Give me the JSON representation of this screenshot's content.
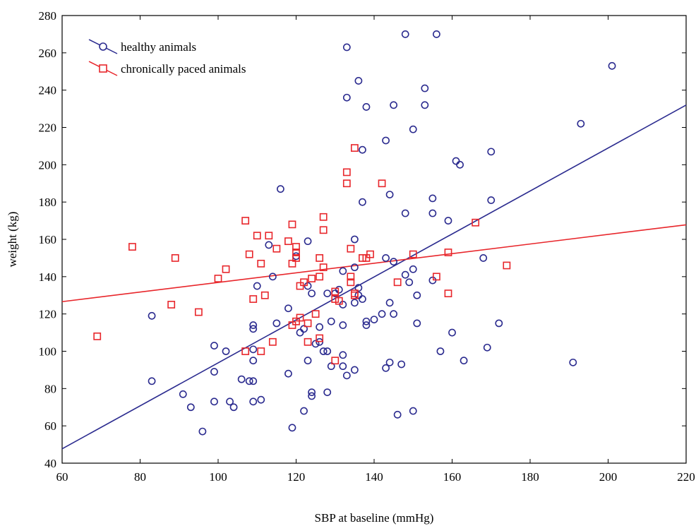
{
  "chart_data": {
    "type": "scatter",
    "title": "",
    "xlabel": "SBP at baseline (mmHg)",
    "ylabel": "weight (kg)",
    "xlim": [
      60,
      220
    ],
    "ylim": [
      40,
      280
    ],
    "xticks": [
      60,
      80,
      100,
      120,
      140,
      160,
      180,
      200,
      220
    ],
    "yticks": [
      40,
      60,
      80,
      100,
      120,
      140,
      160,
      180,
      200,
      220,
      240,
      260,
      280
    ],
    "grid": false,
    "legend_position": "top-left",
    "series": [
      {
        "name": "healthy animals",
        "marker": "circle",
        "color": "#2b2b8f",
        "points": [
          [
            83,
            119
          ],
          [
            83,
            84
          ],
          [
            91,
            77
          ],
          [
            93,
            70
          ],
          [
            96,
            57
          ],
          [
            99,
            103
          ],
          [
            99,
            89
          ],
          [
            99,
            73
          ],
          [
            102,
            100
          ],
          [
            103,
            73
          ],
          [
            104,
            70
          ],
          [
            106,
            85
          ],
          [
            108,
            84
          ],
          [
            109,
            84
          ],
          [
            109,
            114
          ],
          [
            109,
            112
          ],
          [
            109,
            101
          ],
          [
            109,
            95
          ],
          [
            109,
            73
          ],
          [
            110,
            135
          ],
          [
            111,
            74
          ],
          [
            113,
            157
          ],
          [
            114,
            140
          ],
          [
            115,
            115
          ],
          [
            116,
            187
          ],
          [
            118,
            123
          ],
          [
            118,
            88
          ],
          [
            119,
            59
          ],
          [
            120,
            151
          ],
          [
            121,
            110
          ],
          [
            122,
            112
          ],
          [
            122,
            68
          ],
          [
            123,
            159
          ],
          [
            123,
            135
          ],
          [
            123,
            95
          ],
          [
            124,
            131
          ],
          [
            124,
            78
          ],
          [
            124,
            76
          ],
          [
            125,
            104
          ],
          [
            126,
            113
          ],
          [
            126,
            105
          ],
          [
            127,
            100
          ],
          [
            128,
            131
          ],
          [
            128,
            100
          ],
          [
            128,
            78
          ],
          [
            129,
            116
          ],
          [
            129,
            92
          ],
          [
            131,
            133
          ],
          [
            132,
            143
          ],
          [
            132,
            125
          ],
          [
            132,
            114
          ],
          [
            132,
            98
          ],
          [
            132,
            92
          ],
          [
            133,
            263
          ],
          [
            133,
            236
          ],
          [
            133,
            87
          ],
          [
            135,
            160
          ],
          [
            135,
            145
          ],
          [
            135,
            126
          ],
          [
            135,
            90
          ],
          [
            136,
            245
          ],
          [
            136,
            134
          ],
          [
            136,
            130
          ],
          [
            137,
            208
          ],
          [
            137,
            180
          ],
          [
            137,
            128
          ],
          [
            138,
            231
          ],
          [
            138,
            116
          ],
          [
            138,
            114
          ],
          [
            140,
            117
          ],
          [
            142,
            120
          ],
          [
            143,
            213
          ],
          [
            143,
            150
          ],
          [
            143,
            91
          ],
          [
            144,
            184
          ],
          [
            144,
            126
          ],
          [
            144,
            94
          ],
          [
            145,
            232
          ],
          [
            145,
            148
          ],
          [
            145,
            120
          ],
          [
            146,
            66
          ],
          [
            147,
            93
          ],
          [
            148,
            270
          ],
          [
            148,
            174
          ],
          [
            148,
            141
          ],
          [
            149,
            137
          ],
          [
            150,
            219
          ],
          [
            150,
            144
          ],
          [
            150,
            68
          ],
          [
            151,
            130
          ],
          [
            151,
            115
          ],
          [
            153,
            241
          ],
          [
            153,
            232
          ],
          [
            155,
            182
          ],
          [
            155,
            174
          ],
          [
            155,
            138
          ],
          [
            157,
            100
          ],
          [
            159,
            170
          ],
          [
            160,
            110
          ],
          [
            161,
            202
          ],
          [
            162,
            200
          ],
          [
            163,
            95
          ],
          [
            168,
            150
          ],
          [
            169,
            102
          ],
          [
            170,
            207
          ],
          [
            170,
            181
          ],
          [
            172,
            115
          ],
          [
            191,
            94
          ],
          [
            193,
            222
          ],
          [
            201,
            253
          ],
          [
            156,
            270
          ],
          [
            130,
            131
          ]
        ],
        "fit_line": [
          [
            60,
            47.7
          ],
          [
            220,
            232.0
          ]
        ]
      },
      {
        "name": "chronically paced animals",
        "marker": "square",
        "color": "#e8262b",
        "points": [
          [
            69,
            108
          ],
          [
            78,
            156
          ],
          [
            88,
            125
          ],
          [
            89,
            150
          ],
          [
            95,
            121
          ],
          [
            100,
            139
          ],
          [
            102,
            144
          ],
          [
            107,
            170
          ],
          [
            107,
            100
          ],
          [
            108,
            152
          ],
          [
            109,
            128
          ],
          [
            110,
            162
          ],
          [
            111,
            147
          ],
          [
            111,
            100
          ],
          [
            112,
            130
          ],
          [
            113,
            162
          ],
          [
            114,
            105
          ],
          [
            115,
            155
          ],
          [
            118,
            159
          ],
          [
            119,
            168
          ],
          [
            119,
            147
          ],
          [
            119,
            114
          ],
          [
            120,
            156
          ],
          [
            120,
            153
          ],
          [
            120,
            150
          ],
          [
            120,
            116
          ],
          [
            121,
            135
          ],
          [
            121,
            118
          ],
          [
            122,
            137
          ],
          [
            123,
            115
          ],
          [
            123,
            105
          ],
          [
            124,
            139
          ],
          [
            125,
            120
          ],
          [
            126,
            150
          ],
          [
            126,
            140
          ],
          [
            126,
            107
          ],
          [
            127,
            172
          ],
          [
            127,
            165
          ],
          [
            127,
            145
          ],
          [
            130,
            95
          ],
          [
            130,
            132
          ],
          [
            130,
            128
          ],
          [
            131,
            127
          ],
          [
            133,
            196
          ],
          [
            133,
            190
          ],
          [
            134,
            155
          ],
          [
            134,
            140
          ],
          [
            134,
            137
          ],
          [
            135,
            209
          ],
          [
            135,
            131
          ],
          [
            135,
            130
          ],
          [
            137,
            150
          ],
          [
            138,
            150
          ],
          [
            139,
            152
          ],
          [
            142,
            190
          ],
          [
            146,
            137
          ],
          [
            150,
            152
          ],
          [
            156,
            140
          ],
          [
            159,
            153
          ],
          [
            159,
            131
          ],
          [
            166,
            169
          ],
          [
            174,
            146
          ]
        ],
        "fit_line": [
          [
            60,
            126.6
          ],
          [
            220,
            167.8
          ]
        ]
      }
    ]
  }
}
